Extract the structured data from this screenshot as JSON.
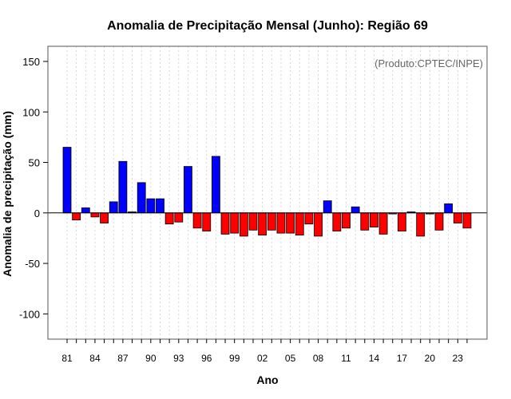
{
  "chart_data": {
    "type": "bar",
    "title": "Anomalia de Precipitação Mensal (Junho): Região 69",
    "xlabel": "Ano",
    "ylabel": "Anomalia de precipitação (mm)",
    "annotation": "(Produto:CPTEC/INPE)",
    "ylim": [
      -125,
      165
    ],
    "y_ticks": [
      -100,
      -50,
      0,
      50,
      100,
      150
    ],
    "x_tick_labels": [
      "81",
      "84",
      "87",
      "90",
      "93",
      "96",
      "99",
      "02",
      "05",
      "08",
      "11",
      "14",
      "17",
      "20",
      "23"
    ],
    "grid": "vertical dotted",
    "categories": [
      "1981",
      "1982",
      "1983",
      "1984",
      "1985",
      "1986",
      "1987",
      "1988",
      "1989",
      "1990",
      "1991",
      "1992",
      "1993",
      "1994",
      "1995",
      "1996",
      "1997",
      "1998",
      "1999",
      "2000",
      "2001",
      "2002",
      "2003",
      "2004",
      "2005",
      "2006",
      "2007",
      "2008",
      "2009",
      "2010",
      "2011",
      "2012",
      "2013",
      "2014",
      "2015",
      "2016",
      "2017",
      "2018",
      "2019",
      "2020",
      "2021",
      "2022",
      "2023",
      "2024"
    ],
    "values": [
      65,
      -7,
      5,
      -4,
      -10,
      11,
      51,
      1,
      30,
      14,
      14,
      -11,
      -9,
      46,
      -15,
      -18,
      56,
      -21,
      -20,
      -23,
      -17,
      -22,
      -17,
      -20,
      -20,
      -22,
      -11,
      -23,
      12,
      -18,
      -15,
      6,
      -17,
      -14,
      -21,
      -1,
      -18,
      1,
      -23,
      -1,
      -17,
      9,
      -10,
      -15
    ],
    "colors": {
      "positive": "#0000ff",
      "negative": "#ff0000",
      "outline": "#000000"
    }
  }
}
